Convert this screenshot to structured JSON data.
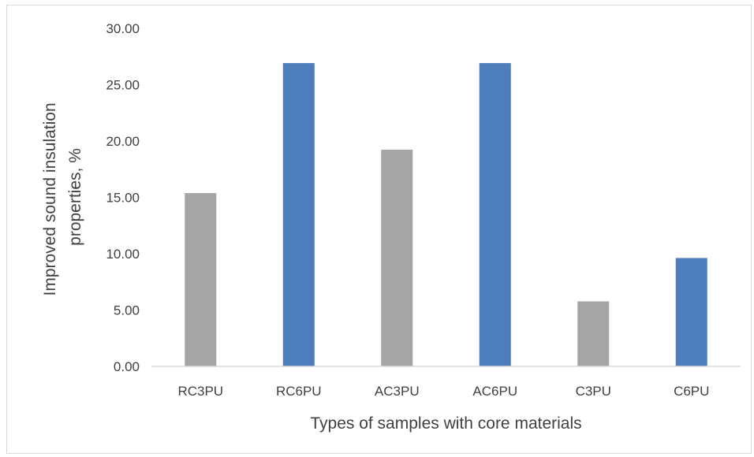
{
  "chart_data": {
    "type": "bar",
    "title": "",
    "xlabel": "Types of samples with core materials",
    "ylabel_lines": [
      "Improved sound insulation",
      "properties, %"
    ],
    "categories": [
      "RC3PU",
      "RC6PU",
      "AC3PU",
      "AC6PU",
      "C3PU",
      "C6PU"
    ],
    "values": [
      15.38,
      26.92,
      19.23,
      26.92,
      5.77,
      9.62
    ],
    "bar_colors": [
      "#a5a5a5",
      "#4e7fbc",
      "#a5a5a5",
      "#4e7fbc",
      "#a5a5a5",
      "#4e7fbc"
    ],
    "ylim": [
      0,
      30
    ],
    "yticks": [
      "0.00",
      "5.00",
      "10.00",
      "15.00",
      "20.00",
      "25.00",
      "30.00"
    ],
    "grid": false,
    "legend": "none"
  }
}
